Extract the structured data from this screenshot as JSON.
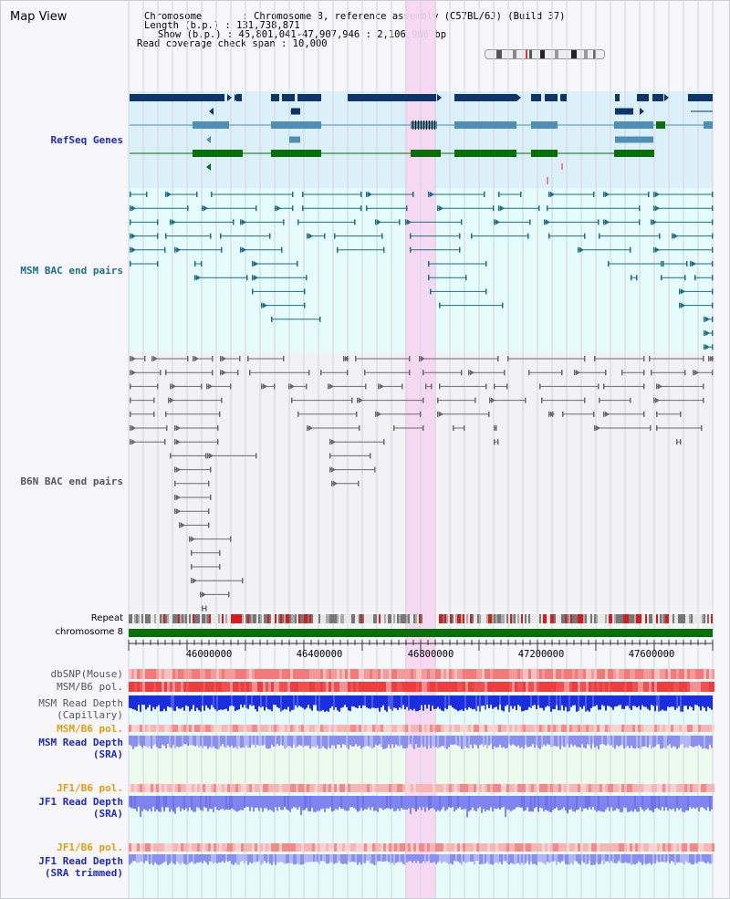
{
  "title": "Map View",
  "header": {
    "chromosome": "Chromosome       : Chromosome 8, reference assembly (C57BL/6J) (Build 37)",
    "length": "Length (b.p.) : 131,738,871",
    "show": "Show (b.p.) : 45,801,041-47,907,946 : 2,106,906 bp",
    "coverage": "Read coverage check span : 10,000"
  },
  "tracks": {
    "refseq": "RefSeq Genes",
    "msm_bac": "MSM BAC end pairs",
    "b6n_bac": "B6N BAC end pairs",
    "repeat": "Repeat",
    "chromosome": "chromosome 8",
    "dbsnp": "dbSNP(Mouse)",
    "msm_b6_pol_1": "MSM/B6 pol.",
    "msm_depth_cap_1": "MSM Read Depth",
    "msm_depth_cap_2": "(Capillary)",
    "msm_b6_pol_2": "MSM/B6 pol.",
    "msm_depth_sra_1": "MSM Read Depth",
    "msm_depth_sra_2": "(SRA)",
    "jf1_b6_pol_1": "JF1/B6 pol.",
    "jf1_depth_sra_1": "JF1 Read Depth",
    "jf1_depth_sra_2": "(SRA)",
    "jf1_b6_pol_2": "JF1/B6 pol.",
    "jf1_depth_trim_1": "JF1 Read Depth",
    "jf1_depth_trim_2": "(SRA trimmed)"
  },
  "axis": {
    "ticks": [
      "46000000",
      "46400000",
      "46800000",
      "47200000",
      "47600000"
    ]
  },
  "colors": {
    "refseq_dark": "#0c3569",
    "refseq_mid": "#4f8fb5",
    "refseq_green": "#0a6e0a",
    "msm_bac": "#1c6d8a",
    "b6n_bac": "#6a6a6a",
    "highlight": "#f7d6f2",
    "msm_bg": "#e6fbfb",
    "refseq_bg": "#dcf0fa",
    "depth_blue": "#1a2ee0",
    "depth_light": "#7f84f0",
    "pol_red": "#ef5050",
    "label_blue": "#1e2ab8",
    "label_orange": "#e09a10",
    "label_teal": "#1c6d8a"
  }
}
